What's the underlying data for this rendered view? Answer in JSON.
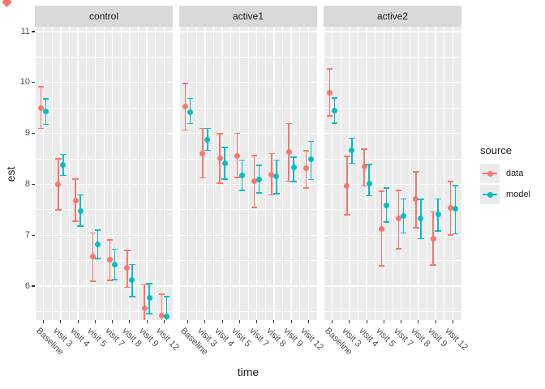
{
  "chart_data": {
    "type": "scatter",
    "variant": "faceted_dodged_pointrange",
    "title": "",
    "xlabel": "time",
    "ylabel": "est",
    "categories": [
      "Baseline",
      "visit 3",
      "visit 4",
      "visit 5",
      "visit 7",
      "visit 8",
      "visit 9",
      "visit 12"
    ],
    "y_ticks": [
      6,
      7,
      8,
      9,
      10,
      11
    ],
    "y_minor_ticks": [
      5.5,
      6.5,
      7.5,
      8.5,
      9.5,
      10.5
    ],
    "ylim": [
      5.33,
      11.1
    ],
    "grid": true,
    "legend": {
      "title": "source",
      "position": "right"
    },
    "series_colors": {
      "data": "#F8766D",
      "model": "#00BFC4"
    },
    "facets": [
      {
        "label": "control",
        "series": [
          {
            "name": "data",
            "color": "#F8766D",
            "est": [
              10.02,
              8.52,
              8.21,
              7.1,
              7.04,
              6.88,
              6.09,
              5.95
            ],
            "lo": [
              9.62,
              8.02,
              7.8,
              6.62,
              6.64,
              6.5,
              5.67,
              5.53
            ],
            "hi": [
              10.44,
              9.03,
              8.63,
              7.57,
              7.43,
              7.23,
              6.55,
              6.37
            ]
          },
          {
            "name": "model",
            "color": "#00BFC4",
            "est": [
              9.95,
              8.91,
              8.0,
              7.34,
              6.94,
              6.65,
              6.3,
              5.93
            ],
            "lo": [
              9.7,
              8.7,
              7.7,
              7.07,
              6.65,
              6.32,
              5.98,
              5.55
            ],
            "hi": [
              10.2,
              9.11,
              8.32,
              7.62,
              7.25,
              6.95,
              6.57,
              6.32
            ]
          }
        ]
      },
      {
        "label": "active1",
        "series": [
          {
            "name": "data",
            "color": "#F8766D",
            "est": [
              10.05,
              9.13,
              9.03,
              9.08,
              8.58,
              8.72,
              9.16,
              8.85
            ],
            "lo": [
              9.59,
              8.65,
              8.55,
              8.66,
              8.07,
              8.32,
              8.59,
              8.45
            ],
            "hi": [
              10.51,
              9.62,
              9.52,
              9.53,
              9.09,
              9.13,
              9.72,
              9.18
            ]
          },
          {
            "name": "model",
            "color": "#00BFC4",
            "est": [
              9.94,
              9.4,
              8.94,
              8.7,
              8.62,
              8.69,
              8.86,
              9.02
            ],
            "lo": [
              9.72,
              9.19,
              8.63,
              8.4,
              8.36,
              8.34,
              8.58,
              8.62
            ],
            "hi": [
              10.21,
              9.62,
              9.25,
              9.0,
              8.9,
              9.0,
              9.06,
              9.37
            ]
          }
        ]
      },
      {
        "label": "active2",
        "series": [
          {
            "name": "data",
            "color": "#F8766D",
            "est": [
              10.33,
              8.5,
              8.87,
              7.65,
              7.85,
              8.23,
              7.46,
              8.06
            ],
            "lo": [
              9.87,
              7.93,
              8.49,
              6.92,
              7.26,
              7.67,
              6.94,
              7.53
            ],
            "hi": [
              10.79,
              9.07,
              9.22,
              8.39,
              8.4,
              8.77,
              7.98,
              8.58
            ]
          },
          {
            "name": "model",
            "color": "#00BFC4",
            "est": [
              9.97,
              9.2,
              8.54,
              8.11,
              7.9,
              7.86,
              7.93,
              8.04
            ],
            "lo": [
              9.73,
              8.94,
              8.3,
              7.78,
              7.57,
              7.46,
              7.61,
              7.55
            ],
            "hi": [
              10.22,
              9.43,
              8.91,
              8.45,
              8.24,
              8.23,
              8.24,
              8.5
            ]
          }
        ]
      }
    ]
  },
  "legend": {
    "title": "source",
    "entries": [
      {
        "label": "data",
        "color": "#F8766D"
      },
      {
        "label": "model",
        "color": "#00BFC4"
      }
    ]
  },
  "theme": {
    "panel_bg": "#EBEBEB",
    "strip_bg": "#D9D9D9",
    "grid_color": "#FFFFFF",
    "axis_text_color": "#4D4D4D",
    "text_color": "#1A1A1A"
  }
}
